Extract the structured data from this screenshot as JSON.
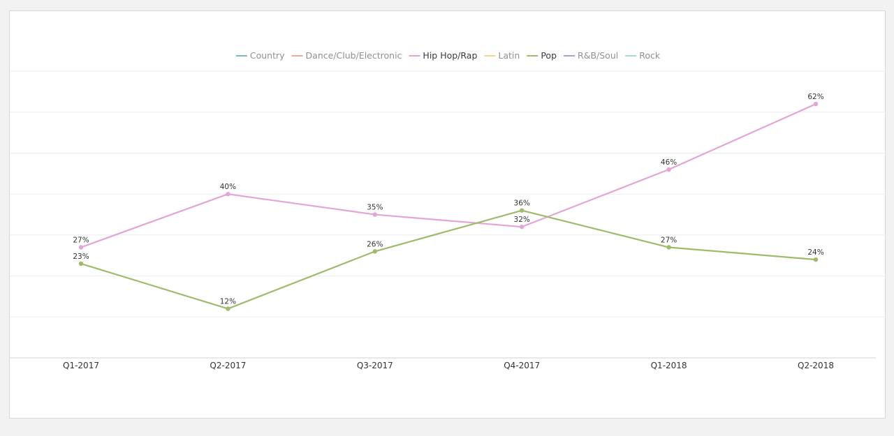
{
  "chart_data": {
    "type": "line",
    "categories": [
      "Q1-2017",
      "Q2-2017",
      "Q3-2017",
      "Q4-2017",
      "Q1-2018",
      "Q2-2018"
    ],
    "legend": [
      {
        "name": "Country",
        "color": "#7fb2c9",
        "active": false
      },
      {
        "name": "Dance/Club/Electronic",
        "color": "#f2a9a3",
        "active": false
      },
      {
        "name": "Hip Hop/Rap",
        "color": "#e3a5d6",
        "active": true
      },
      {
        "name": "Latin",
        "color": "#f6d58f",
        "active": false
      },
      {
        "name": "Pop",
        "color": "#9dbb6b",
        "active": true
      },
      {
        "name": "R&B/Soul",
        "color": "#a6a1d6",
        "active": false
      },
      {
        "name": "Rock",
        "color": "#a8dcd6",
        "active": false
      }
    ],
    "legend_placement": "top-center",
    "series": [
      {
        "name": "Hip Hop/Rap",
        "color": "#e3a5d6",
        "values": [
          27,
          40,
          35,
          32,
          46,
          62
        ],
        "labels": [
          "27%",
          "40%",
          "35%",
          "32%",
          "46%",
          "62%"
        ]
      },
      {
        "name": "Pop",
        "color": "#9dbb6b",
        "values": [
          23,
          12,
          26,
          36,
          27,
          24
        ],
        "labels": [
          "23%",
          "12%",
          "26%",
          "36%",
          "27%",
          "24%"
        ]
      }
    ],
    "ylim": [
      0,
      70
    ],
    "grid": true,
    "y_ticks_shown": false
  }
}
